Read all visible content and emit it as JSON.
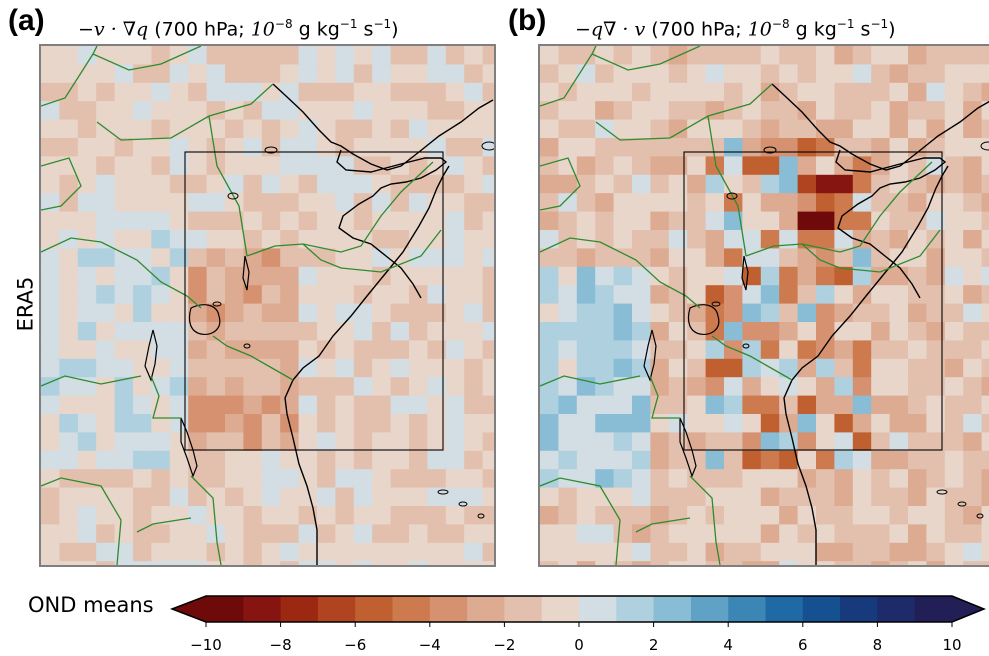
{
  "panels": [
    {
      "letter": "(a)",
      "title_math": "−v · ∇q",
      "title_text": " (700 hPa; ",
      "title_pow": "10",
      "title_pow_exp": "−8",
      "title_units": " g kg",
      "title_units_exp1": "−1",
      "title_units2": " s",
      "title_units_exp2": "−1",
      "title_close": ")"
    },
    {
      "letter": "(b)",
      "title_math": "−q∇ · v",
      "title_text": " (700 hPa; ",
      "title_pow": "10",
      "title_pow_exp": "−8",
      "title_units": " g kg",
      "title_units_exp1": "−1",
      "title_units2": " s",
      "title_units_exp2": "−1",
      "title_close": ")"
    }
  ],
  "row_label": "ERA5",
  "colorbar": {
    "label": "OND means",
    "min": -10,
    "max": 10,
    "step": 1,
    "ticks": [
      "−10",
      "−8",
      "−6",
      "−4",
      "−2",
      "0",
      "2",
      "4",
      "6",
      "8",
      "10"
    ],
    "colors": [
      "#6e0a0a",
      "#861410",
      "#9c2812",
      "#b04320",
      "#c05f2f",
      "#cd7a4f",
      "#d69170",
      "#ddaa92",
      "#e3c0ad",
      "#e8d6cb",
      "#d2dde4",
      "#aed0df",
      "#89bdd5",
      "#5fa2c6",
      "#3c86b6",
      "#1f69a4",
      "#155190",
      "#173a7d",
      "#1d2b6b",
      "#221f57"
    ]
  }
}
